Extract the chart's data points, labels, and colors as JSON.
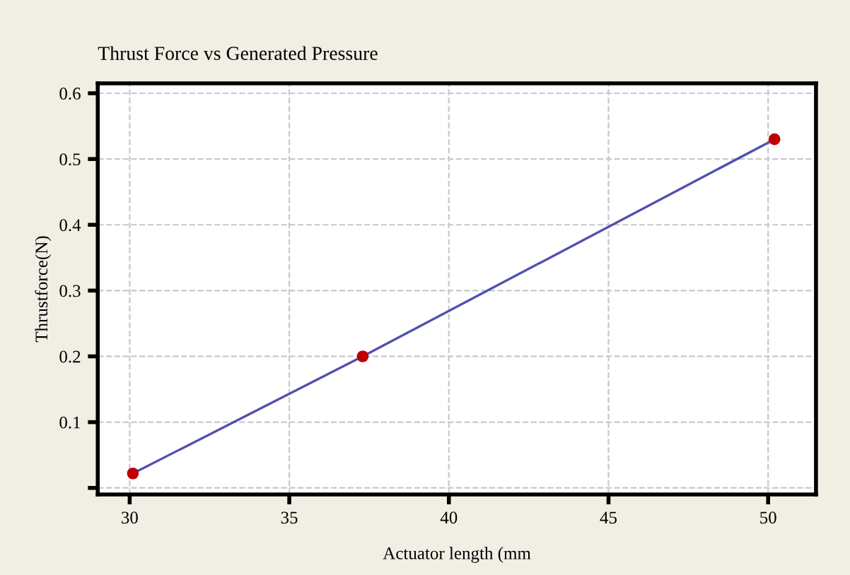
{
  "chart_data": {
    "type": "line",
    "title": "Thrust Force vs Generated Pressure",
    "xlabel": "Actuator length (mm",
    "ylabel": "Thrustforce(N)",
    "x": [
      30.1,
      37.3,
      50.2
    ],
    "series": [
      {
        "color": "#5050b0",
        "colors": [
          "#c00000",
          "#c00000",
          "#c00000"
        ],
        "values": [
          0.022,
          0.2,
          0.53
        ]
      }
    ],
    "marker": "circle",
    "xlim": [
      29,
      51.5
    ],
    "xticks": [
      30,
      35,
      40,
      45,
      50
    ],
    "ylim": [
      -0.01,
      0.615
    ],
    "yticks": [
      {
        "value": 0,
        "label": null
      },
      0.1,
      0.2,
      0.3,
      0.4,
      0.5,
      0.6
    ],
    "grid": true,
    "line_style": "solid"
  }
}
